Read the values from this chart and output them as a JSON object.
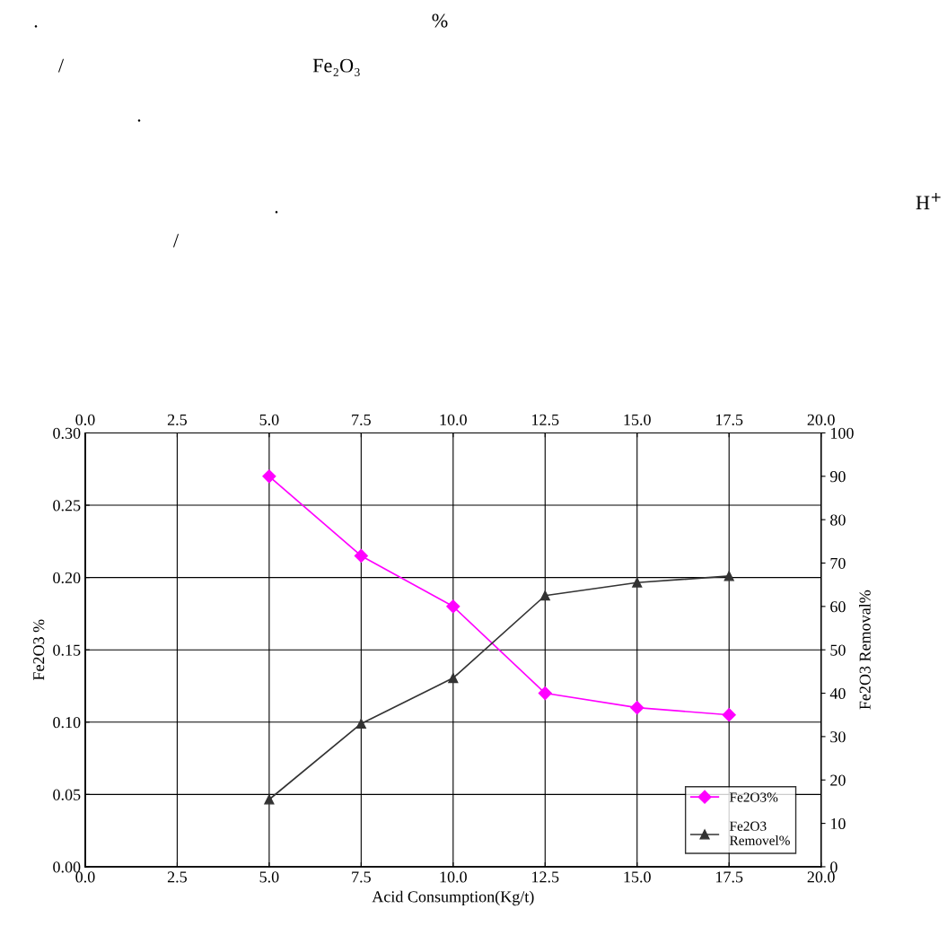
{
  "chart_data": {
    "type": "line",
    "xlabel": "Acid Consumption(Kg/t)",
    "ylabel": "Fe2O3 %",
    "y2label": "Fe2O3 Removal%",
    "x": [
      5.0,
      7.5,
      10.0,
      12.5,
      15.0,
      17.5
    ],
    "series": [
      {
        "name": "Fe2O3%",
        "color": "#ff00ff",
        "marker": "diamond",
        "values": [
          0.27,
          0.215,
          0.18,
          0.12,
          0.11,
          0.105
        ]
      },
      {
        "name": "Fe2O3\nRemovel%",
        "color": "#333333",
        "marker": "triangle",
        "axis": "y2",
        "values": [
          15.5,
          33,
          43.5,
          62.5,
          65.5,
          67
        ]
      }
    ],
    "xlim": [
      0,
      20
    ],
    "xticks": [
      {
        "value": 0,
        "label": "0.0"
      },
      {
        "value": 2.5,
        "label": "2.5"
      },
      {
        "value": 5,
        "label": "5.0"
      },
      {
        "value": 7.5,
        "label": "7.5"
      },
      {
        "value": 10,
        "label": "10.0"
      },
      {
        "value": 12.5,
        "label": "12.5"
      },
      {
        "value": 15,
        "label": "15.0"
      },
      {
        "value": 17.5,
        "label": "17.5"
      },
      {
        "value": 20,
        "label": "20.0"
      }
    ],
    "x2lim": [
      0,
      20
    ],
    "x2ticks": [
      {
        "value": 0,
        "label": "0.0"
      },
      {
        "value": 2.5,
        "label": "2.5"
      },
      {
        "value": 5,
        "label": "5.0"
      },
      {
        "value": 7.5,
        "label": "7.5"
      },
      {
        "value": 10,
        "label": "10.0"
      },
      {
        "value": 12.5,
        "label": "12.5"
      },
      {
        "value": 15,
        "label": "15.0"
      },
      {
        "value": 17.5,
        "label": "17.5"
      },
      {
        "value": 20,
        "label": "20.0"
      }
    ],
    "ylim": [
      0,
      0.3
    ],
    "yticks": [
      {
        "value": 0,
        "label": "0.00"
      },
      {
        "value": 0.05,
        "label": "0.05"
      },
      {
        "value": 0.1,
        "label": "0.10"
      },
      {
        "value": 0.15,
        "label": "0.15"
      },
      {
        "value": 0.2,
        "label": "0.20"
      },
      {
        "value": 0.25,
        "label": "0.25"
      },
      {
        "value": 0.3,
        "label": "0.30"
      }
    ],
    "y2lim": [
      0,
      100
    ],
    "y2ticks": [
      0,
      10,
      20,
      30,
      40,
      50,
      60,
      70,
      80,
      90,
      100
    ],
    "grid": true,
    "legend": "bottom right",
    "line_style": "solid",
    "annotations": [
      ".",
      "%",
      "/",
      "Fe₂O₃",
      ".",
      ".",
      "H$^{+}$",
      "/"
    ]
  }
}
